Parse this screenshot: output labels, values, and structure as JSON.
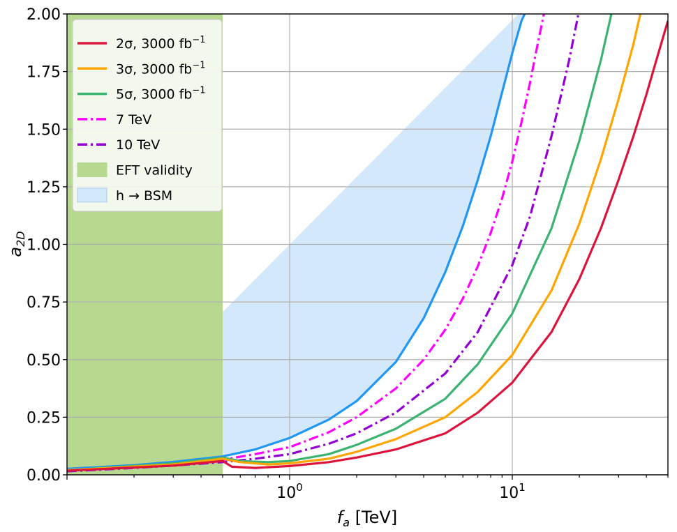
{
  "chart_data": {
    "type": "line",
    "xscale": "log",
    "xlim": [
      0.1,
      50
    ],
    "ylim": [
      0.0,
      2.0
    ],
    "xlabel": "f_a [TeV]",
    "ylabel": "a_2D",
    "grid": true,
    "legend_position": "upper-left",
    "xticks": [
      {
        "value": 1,
        "base": "10",
        "exp": "0"
      },
      {
        "value": 10,
        "base": "10",
        "exp": "1"
      }
    ],
    "yticks": [
      {
        "value": 0.0,
        "label": "0.00"
      },
      {
        "value": 0.25,
        "label": "0.25"
      },
      {
        "value": 0.5,
        "label": "0.50"
      },
      {
        "value": 0.75,
        "label": "0.75"
      },
      {
        "value": 1.0,
        "label": "1.00"
      },
      {
        "value": 1.25,
        "label": "1.25"
      },
      {
        "value": 1.5,
        "label": "1.50"
      },
      {
        "value": 1.75,
        "label": "1.75"
      },
      {
        "value": 2.0,
        "label": "2.00"
      }
    ],
    "regions": [
      {
        "name": "EFT validity",
        "x_from": 0.1,
        "x_to": 0.5,
        "color": "#b7d88f"
      },
      {
        "name": "h → BSM",
        "color": "#d3e8fb",
        "edge_color": "#2196f3",
        "boundary": {
          "x": [
            0.1,
            0.2,
            0.3,
            0.5,
            0.7,
            1.0,
            1.5,
            2.0,
            3.0,
            4.0,
            5.0,
            6.0,
            7.0,
            8.0,
            9.0,
            10.0,
            11.0,
            12.0
          ],
          "y": [
            0.026,
            0.042,
            0.056,
            0.08,
            0.11,
            0.16,
            0.24,
            0.32,
            0.49,
            0.68,
            0.88,
            1.08,
            1.28,
            1.47,
            1.66,
            1.83,
            1.97,
            2.05
          ]
        }
      }
    ],
    "series": [
      {
        "name": "2σ, 3000 fb⁻¹",
        "label": "2σ, 3000 fb",
        "sup": "−1",
        "color": "#dc143c",
        "style": "solid",
        "x": [
          0.1,
          0.3,
          0.5,
          0.55,
          0.7,
          1.0,
          1.5,
          2.0,
          3.0,
          5.0,
          7.0,
          10.0,
          15.0,
          20.0,
          25.0,
          30.0,
          35.0,
          40.0,
          45.0,
          50.0
        ],
        "y": [
          0.018,
          0.04,
          0.06,
          0.035,
          0.03,
          0.038,
          0.055,
          0.075,
          0.11,
          0.18,
          0.27,
          0.4,
          0.62,
          0.85,
          1.07,
          1.28,
          1.47,
          1.65,
          1.82,
          1.97
        ]
      },
      {
        "name": "3σ, 3000 fb⁻¹",
        "label": "3σ, 3000 fb",
        "sup": "−1",
        "color": "#ffa500",
        "style": "solid",
        "x": [
          0.1,
          0.3,
          0.5,
          0.6,
          0.8,
          1.0,
          1.5,
          2.0,
          3.0,
          5.0,
          7.0,
          10.0,
          15.0,
          20.0,
          25.0,
          30.0,
          35.0,
          38.0
        ],
        "y": [
          0.02,
          0.045,
          0.07,
          0.055,
          0.045,
          0.05,
          0.07,
          0.1,
          0.155,
          0.25,
          0.36,
          0.52,
          0.8,
          1.09,
          1.37,
          1.63,
          1.87,
          2.02
        ]
      },
      {
        "name": "5σ, 3000 fb⁻¹",
        "label": "5σ, 3000 fb",
        "sup": "−1",
        "color": "#3cb371",
        "style": "solid",
        "x": [
          0.1,
          0.3,
          0.5,
          0.6,
          0.8,
          1.0,
          1.5,
          2.0,
          3.0,
          5.0,
          7.0,
          10.0,
          15.0,
          20.0,
          25.0,
          28.0
        ],
        "y": [
          0.02,
          0.05,
          0.075,
          0.06,
          0.055,
          0.06,
          0.09,
          0.13,
          0.2,
          0.33,
          0.48,
          0.7,
          1.07,
          1.45,
          1.8,
          2.01
        ]
      },
      {
        "name": "7 TeV",
        "label": "7 TeV",
        "sup": "",
        "color": "#ff00ff",
        "style": "dashdot",
        "x": [
          0.1,
          0.2,
          0.3,
          0.5,
          0.7,
          1.0,
          1.5,
          2.0,
          3.0,
          4.0,
          5.0,
          6.0,
          7.0,
          8.0,
          9.0,
          10.0,
          11.0,
          12.0,
          13.0,
          14.0
        ],
        "y": [
          0.02,
          0.035,
          0.045,
          0.065,
          0.09,
          0.12,
          0.185,
          0.25,
          0.375,
          0.5,
          0.63,
          0.765,
          0.905,
          1.05,
          1.2,
          1.36,
          1.53,
          1.7,
          1.87,
          2.02
        ]
      },
      {
        "name": "10 TeV",
        "label": "10 TeV",
        "sup": "",
        "color": "#9400d3",
        "style": "dashdot",
        "x": [
          0.1,
          0.2,
          0.3,
          0.5,
          0.7,
          1.0,
          1.5,
          2.0,
          3.0,
          5.0,
          7.0,
          10.0,
          12.0,
          15.0,
          18.0,
          20.0
        ],
        "y": [
          0.015,
          0.03,
          0.04,
          0.055,
          0.07,
          0.09,
          0.135,
          0.18,
          0.27,
          0.44,
          0.62,
          0.91,
          1.12,
          1.47,
          1.8,
          2.02
        ]
      }
    ],
    "legend": [
      {
        "key": "s2",
        "label": "2σ, 3000 fb",
        "sup": "−1"
      },
      {
        "key": "s3",
        "label": "3σ, 3000 fb",
        "sup": "−1"
      },
      {
        "key": "s5",
        "label": "5σ, 3000 fb",
        "sup": "−1"
      },
      {
        "key": "t7",
        "label": "7 TeV",
        "sup": ""
      },
      {
        "key": "t10",
        "label": "10 TeV",
        "sup": ""
      },
      {
        "key": "eft",
        "label": "EFT validity",
        "sup": ""
      },
      {
        "key": "hbsm",
        "label": "h → BSM",
        "sup": ""
      }
    ]
  }
}
